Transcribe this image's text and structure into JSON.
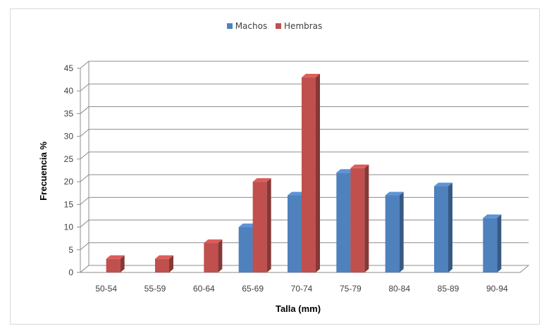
{
  "chart_data": {
    "type": "bar",
    "categories": [
      "50-54",
      "55-59",
      "60-64",
      "65-69",
      "70-74",
      "75-79",
      "80-84",
      "85-89",
      "90-94"
    ],
    "series": [
      {
        "name": "Machos",
        "color": "#4f81bd",
        "values": [
          null,
          null,
          null,
          10,
          17,
          22,
          17,
          19,
          12
        ]
      },
      {
        "name": "Hembras",
        "color": "#c0504d",
        "values": [
          3,
          3,
          6.5,
          20,
          43,
          23,
          null,
          null,
          null
        ]
      }
    ],
    "xlabel": "Talla (mm)",
    "ylabel": "Frecuencia %",
    "ylim": [
      0,
      45
    ],
    "yticks": [
      0,
      5,
      10,
      15,
      20,
      25,
      30,
      35,
      40,
      45
    ],
    "grid": true,
    "legend_position": "top"
  }
}
